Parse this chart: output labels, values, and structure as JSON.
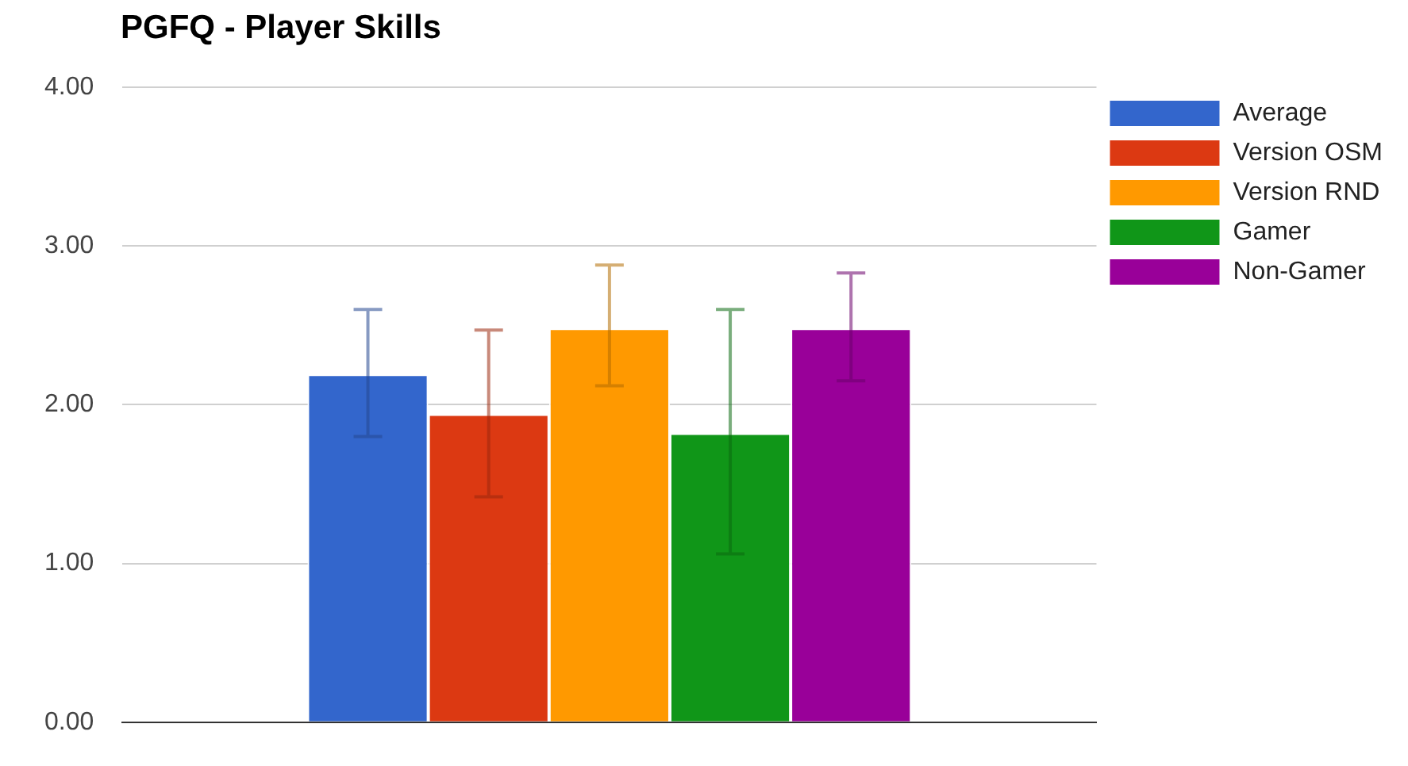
{
  "chart_data": {
    "type": "bar",
    "title": "PGFQ - Player Skills",
    "categories": [
      null
    ],
    "series": [
      {
        "name": "Average",
        "color": "#3366cc",
        "values": [
          2.19
        ],
        "errors": [
          [
            1.8,
            2.6
          ]
        ]
      },
      {
        "name": "Version OSM",
        "color": "#dc3912",
        "values": [
          1.94
        ],
        "errors": [
          [
            1.42,
            2.47
          ]
        ]
      },
      {
        "name": "Version RND",
        "color": "#ff9900",
        "values": [
          2.48
        ],
        "errors": [
          [
            2.12,
            2.88
          ]
        ]
      },
      {
        "name": "Gamer",
        "color": "#109618",
        "values": [
          1.82
        ],
        "errors": [
          [
            1.06,
            2.6
          ]
        ]
      },
      {
        "name": "Non-Gamer",
        "color": "#990099",
        "values": [
          2.48
        ],
        "errors": [
          [
            2.15,
            2.83
          ]
        ]
      }
    ],
    "ylim": [
      0,
      4
    ],
    "yticks": [
      {
        "value": 0,
        "label": "0.00"
      },
      {
        "value": 1,
        "label": "1.00"
      },
      {
        "value": 2,
        "label": "2.00"
      },
      {
        "value": 3,
        "label": "3.00"
      },
      {
        "value": 4,
        "label": "4.00"
      }
    ],
    "grid": "y",
    "legend": "right"
  }
}
